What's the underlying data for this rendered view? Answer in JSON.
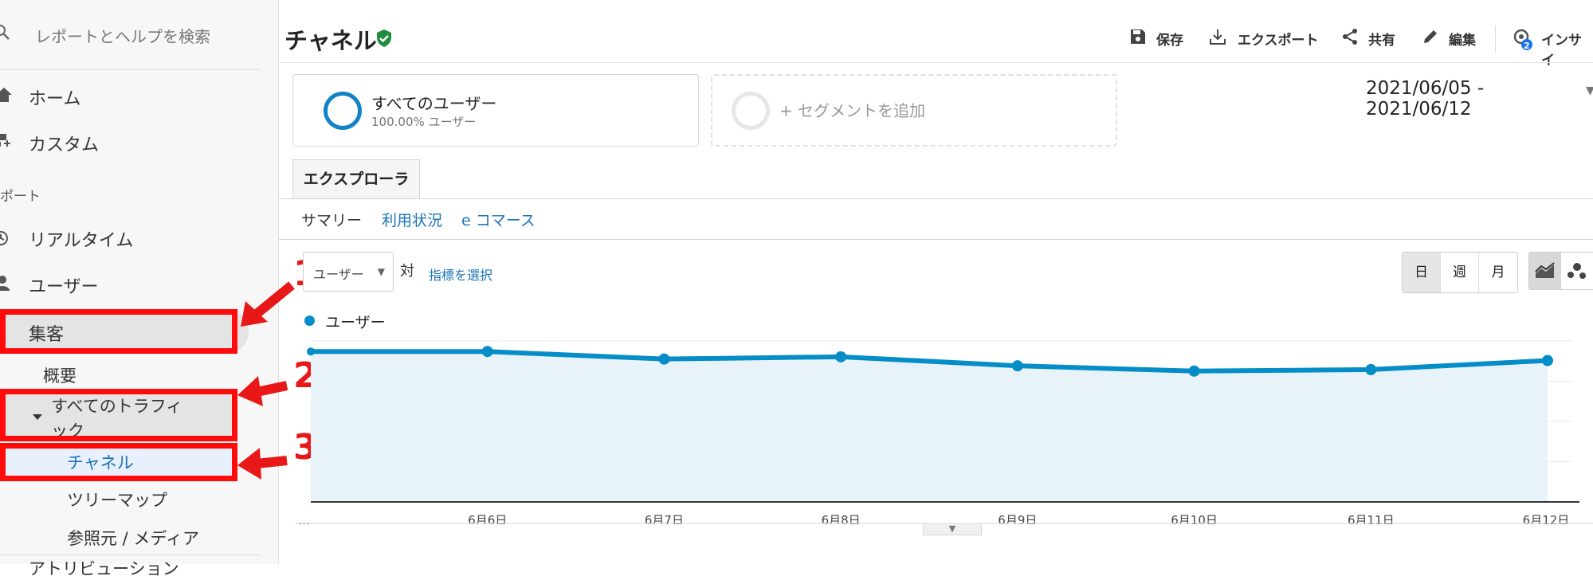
{
  "sidebar": {
    "search_placeholder": "レポートとヘルプを検索",
    "home": "ホーム",
    "custom": "カスタム",
    "reports_section": "ポート",
    "realtime": "リアルタイム",
    "users": "ユーザー",
    "acquisition": "集客",
    "overview": "概要",
    "all_traffic_line1": "すべてのトラフィ",
    "all_traffic_line2": "ック",
    "channels": "チャネル",
    "treemap": "ツリーマップ",
    "source_medium": "参照元 / メディア",
    "attribution_partial": "アトリビューション"
  },
  "annotations": {
    "one": "1",
    "two": "2",
    "three": "3",
    "color": "#ff0b0b"
  },
  "header": {
    "title": "チャネル",
    "save": "保存",
    "export": "エクスポート",
    "share": "共有",
    "edit": "編集",
    "insights": "インサイ",
    "insights_badge": "2"
  },
  "segments": {
    "all_users_name": "すべてのユーザー",
    "all_users_pct": "100.00% ユーザー",
    "add_segment": "+ セグメントを追加"
  },
  "date_range": "2021/06/05 - 2021/06/12",
  "tabs": {
    "explorer": "エクスプローラ"
  },
  "subtabs": {
    "summary": "サマリー",
    "usage": "利用状況",
    "ecommerce": "e コマース"
  },
  "metric": {
    "selected": "ユーザー",
    "vs": "対",
    "pick": "指標を選択"
  },
  "granularity": {
    "day": "日",
    "week": "週",
    "month": "月"
  },
  "legend": "ユーザー",
  "colors": {
    "accent": "#058dc7",
    "link": "#1a73b8",
    "fill": "#e8f2f9"
  },
  "chart_data": {
    "type": "area",
    "categories": [
      "…",
      "6月6日",
      "6月7日",
      "6月8日",
      "6月9日",
      "6月10日",
      "6月11日",
      "6月12日"
    ],
    "series": [
      {
        "name": "ユーザー",
        "values": [
          100,
          100,
          95,
          96.5,
          90.5,
          87,
          88,
          94
        ]
      }
    ],
    "ylim": [
      0,
      107
    ],
    "grid": true,
    "ylabel": "",
    "xlabel": "",
    "title": ""
  }
}
